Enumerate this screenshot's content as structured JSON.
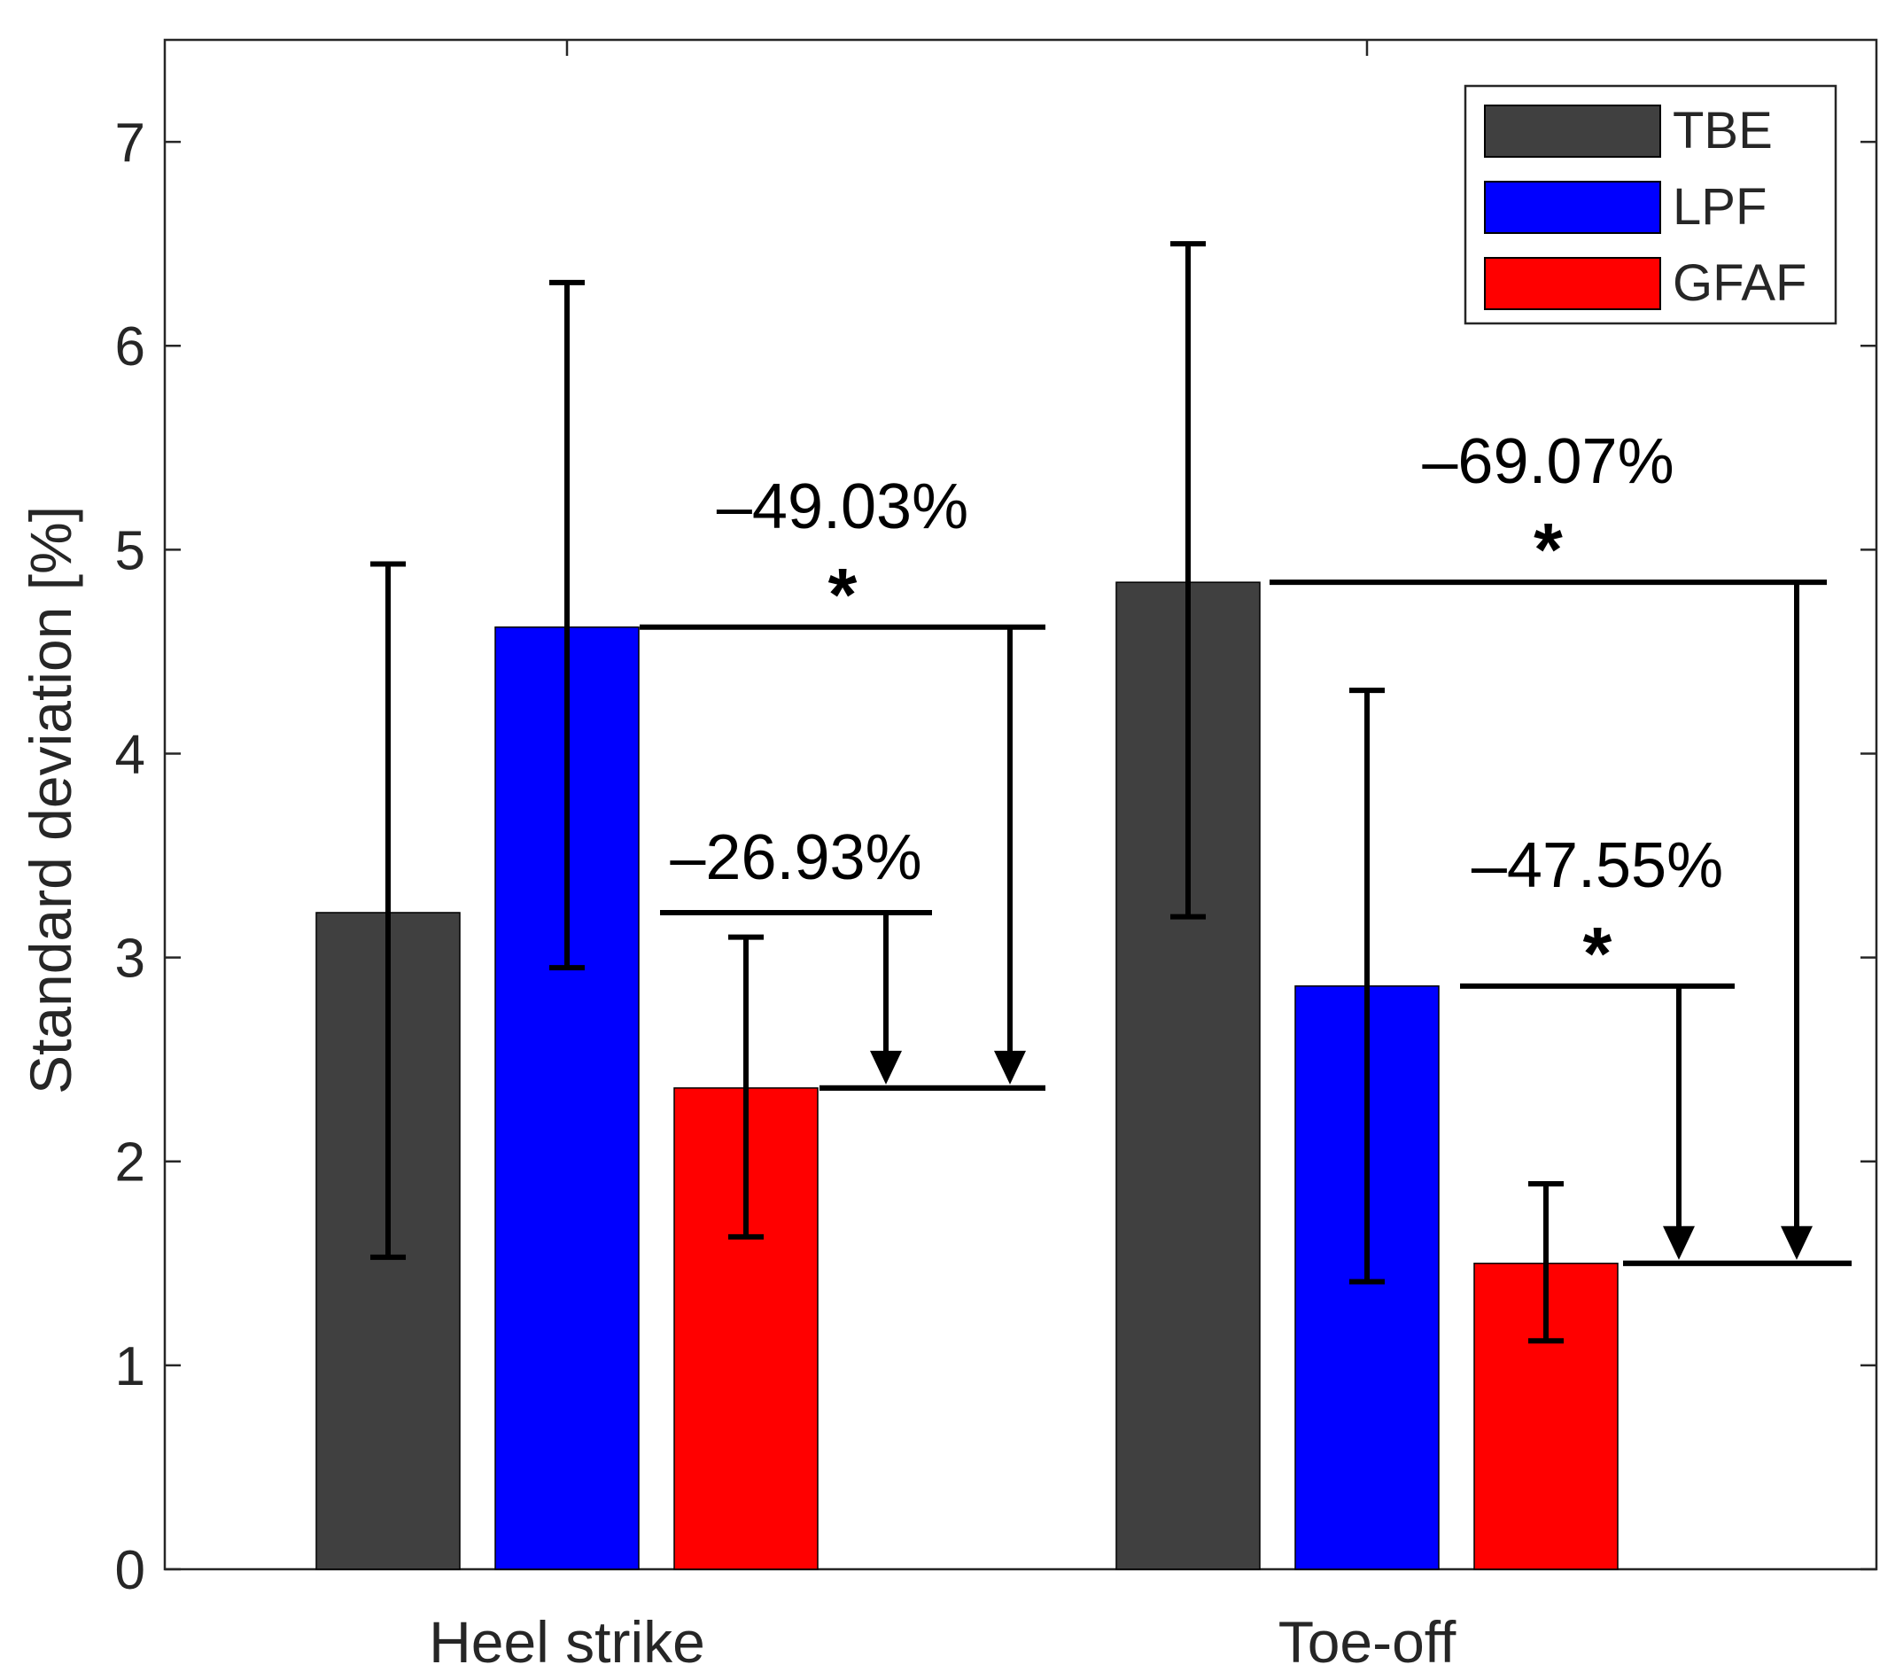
{
  "chart_data": {
    "type": "bar",
    "categories": [
      "Heel strike",
      "Toe-off"
    ],
    "series": [
      {
        "name": "TBE",
        "color": "#404040",
        "values": [
          3.22,
          4.84
        ],
        "err_low": [
          1.53,
          3.2
        ],
        "err_high": [
          4.93,
          6.5
        ]
      },
      {
        "name": "LPF",
        "color": "#0000ff",
        "values": [
          4.62,
          2.86
        ],
        "err_low": [
          2.95,
          1.41
        ],
        "err_high": [
          6.31,
          4.31
        ]
      },
      {
        "name": "GFAF",
        "color": "#ff0000",
        "values": [
          2.36,
          1.5
        ],
        "err_low": [
          1.63,
          1.12
        ],
        "err_high": [
          3.1,
          1.89
        ]
      }
    ],
    "ylabel": "Standard deviation [%]",
    "ylim": [
      0,
      7.5
    ],
    "yticks": [
      0,
      1,
      2,
      3,
      4,
      5,
      6,
      7
    ],
    "ytick_labels": [
      "0",
      "1",
      "2",
      "3",
      "4",
      "5",
      "6",
      "7"
    ],
    "grid": false,
    "legend_position": "top-right",
    "annotations": [
      {
        "category": 0,
        "from_series": 0,
        "to_series": 2,
        "text": "–26.93%",
        "star": ""
      },
      {
        "category": 0,
        "from_series": 1,
        "to_series": 2,
        "text": "–49.03%",
        "star": "*"
      },
      {
        "category": 1,
        "from_series": 1,
        "to_series": 2,
        "text": "–47.55%",
        "star": "*"
      },
      {
        "category": 1,
        "from_series": 0,
        "to_series": 2,
        "text": "–69.07%",
        "star": "*"
      }
    ]
  }
}
